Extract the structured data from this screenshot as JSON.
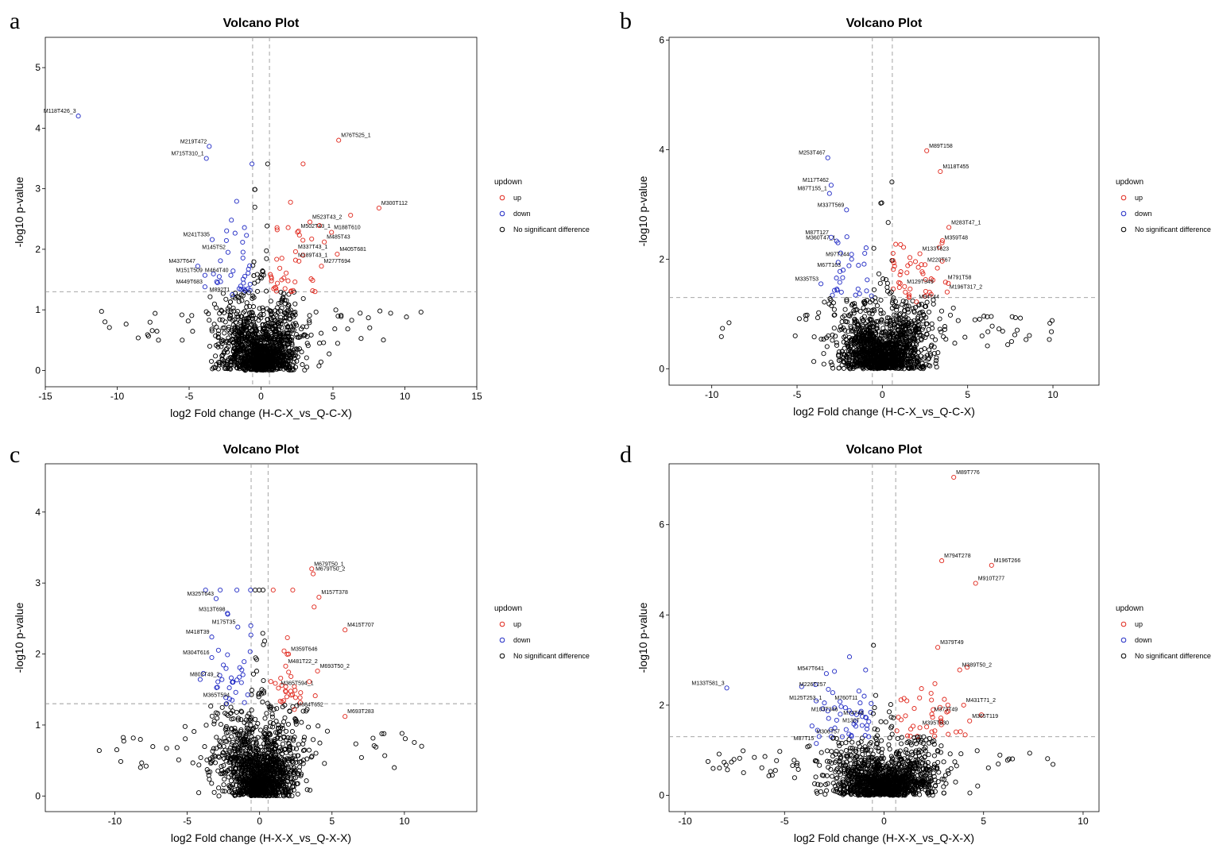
{
  "colors": {
    "up": "#e0261b",
    "down": "#1f29c4",
    "ns": "#000000",
    "guide": "#9a9a9a"
  },
  "chart_data": [
    {
      "panel": "a",
      "type": "scatter",
      "title": "Volcano Plot",
      "xlabel": "log2 Fold change (H-C-X_vs_Q-C-X)",
      "ylabel": "-log10 p-value",
      "xlim": [
        -15,
        15
      ],
      "ylim": [
        -0.27,
        5.5
      ],
      "xticks": [
        -15,
        -10,
        -5,
        0,
        5,
        10,
        15
      ],
      "yticks": [
        0,
        1,
        2,
        3,
        4,
        5
      ],
      "fc_threshold": 0.585,
      "p_threshold": 1.3,
      "grid": false,
      "legend_position": "right",
      "legend": {
        "title": "updown",
        "items": [
          "up",
          "down",
          "No significant difference"
        ]
      },
      "labeled_points": [
        {
          "label": "M118T426_3",
          "x": -12.7,
          "y": 4.2,
          "group": "down"
        },
        {
          "label": "M219T472",
          "x": -3.6,
          "y": 3.7,
          "group": "down"
        },
        {
          "label": "M715T310_1",
          "x": -3.8,
          "y": 3.5,
          "group": "down"
        },
        {
          "label": "M241T335",
          "x": -3.4,
          "y": 2.16,
          "group": "down"
        },
        {
          "label": "M145T52",
          "x": -2.3,
          "y": 1.95,
          "group": "down"
        },
        {
          "label": "M437T647",
          "x": -4.4,
          "y": 1.72,
          "group": "down"
        },
        {
          "label": "M151T509",
          "x": -3.9,
          "y": 1.57,
          "group": "down"
        },
        {
          "label": "M464T40",
          "x": -2.1,
          "y": 1.57,
          "group": "down"
        },
        {
          "label": "M449T683",
          "x": -3.9,
          "y": 1.38,
          "group": "down"
        },
        {
          "label": "M892T1",
          "x": -2.0,
          "y": 1.25,
          "group": "down"
        },
        {
          "label": "M76T525_1",
          "x": 5.4,
          "y": 3.8,
          "group": "up"
        },
        {
          "label": "M300T112",
          "x": 8.2,
          "y": 2.68,
          "group": "up"
        },
        {
          "label": "M523T43_2",
          "x": 3.4,
          "y": 2.45,
          "group": "up"
        },
        {
          "label": "M502T43_1",
          "x": 2.6,
          "y": 2.3,
          "group": "up"
        },
        {
          "label": "M188T610",
          "x": 4.9,
          "y": 2.28,
          "group": "up"
        },
        {
          "label": "M485T43",
          "x": 4.4,
          "y": 2.12,
          "group": "up"
        },
        {
          "label": "M337T43_1",
          "x": 2.4,
          "y": 1.96,
          "group": "up"
        },
        {
          "label": "M405T681",
          "x": 5.3,
          "y": 1.92,
          "group": "up"
        },
        {
          "label": "M189T43_1",
          "x": 2.4,
          "y": 1.82,
          "group": "up"
        },
        {
          "label": "M277T694",
          "x": 4.2,
          "y": 1.72,
          "group": "up"
        }
      ]
    },
    {
      "panel": "b",
      "type": "scatter",
      "title": "Volcano Plot",
      "xlabel": "log2 Fold change (H-C-X_vs_Q-C-X)",
      "ylabel": "-log10 p-value",
      "xlim": [
        -12.5,
        12.7
      ],
      "ylim": [
        -0.3,
        6.05
      ],
      "xticks": [
        -10,
        -5,
        0,
        5,
        10
      ],
      "yticks": [
        0,
        2,
        4,
        6
      ],
      "fc_threshold": 0.585,
      "p_threshold": 1.3,
      "grid": false,
      "legend_position": "right",
      "legend": {
        "title": "updown",
        "items": [
          "up",
          "down",
          "No significant difference"
        ]
      },
      "labeled_points": [
        {
          "label": "M253T467",
          "x": -3.2,
          "y": 3.85,
          "group": "down"
        },
        {
          "label": "M117T462",
          "x": -3.0,
          "y": 3.35,
          "group": "down"
        },
        {
          "label": "M87T155_1",
          "x": -3.1,
          "y": 3.2,
          "group": "down"
        },
        {
          "label": "M337T569",
          "x": -2.1,
          "y": 2.9,
          "group": "down"
        },
        {
          "label": "M87T127",
          "x": -3.0,
          "y": 2.4,
          "group": "down"
        },
        {
          "label": "M360T47_1",
          "x": -2.6,
          "y": 2.3,
          "group": "down"
        },
        {
          "label": "M97T144",
          "x": -1.8,
          "y": 2.0,
          "group": "down"
        },
        {
          "label": "M67T163",
          "x": -2.3,
          "y": 1.8,
          "group": "down"
        },
        {
          "label": "M335T53",
          "x": -3.6,
          "y": 1.55,
          "group": "down"
        },
        {
          "label": "M89T158",
          "x": 2.6,
          "y": 3.98,
          "group": "up"
        },
        {
          "label": "M118T455",
          "x": 3.4,
          "y": 3.6,
          "group": "up"
        },
        {
          "label": "M283T47_1",
          "x": 3.9,
          "y": 2.58,
          "group": "up"
        },
        {
          "label": "M359T48",
          "x": 3.5,
          "y": 2.3,
          "group": "up"
        },
        {
          "label": "M133T623",
          "x": 2.2,
          "y": 2.1,
          "group": "up"
        },
        {
          "label": "M220T67",
          "x": 2.5,
          "y": 1.9,
          "group": "up"
        },
        {
          "label": "M791T58",
          "x": 3.7,
          "y": 1.58,
          "group": "up"
        },
        {
          "label": "M129T349",
          "x": 1.3,
          "y": 1.5,
          "group": "up"
        },
        {
          "label": "M196T317_2",
          "x": 3.8,
          "y": 1.4,
          "group": "up"
        },
        {
          "label": "M94T44",
          "x": 2.0,
          "y": 1.22,
          "group": "up"
        }
      ]
    },
    {
      "panel": "c",
      "type": "scatter",
      "title": "Volcano Plot",
      "xlabel": "log2 Fold change (H-X-X_vs_Q-X-X)",
      "ylabel": "-log10 p-value",
      "xlim": [
        -14.8,
        15
      ],
      "ylim": [
        -0.22,
        4.68
      ],
      "xticks": [
        -10,
        -5,
        0,
        5,
        10
      ],
      "yticks": [
        0,
        1,
        2,
        3,
        4
      ],
      "fc_threshold": 0.585,
      "p_threshold": 1.3,
      "grid": false,
      "legend_position": "right",
      "legend": {
        "title": "updown",
        "items": [
          "up",
          "down",
          "No significant difference"
        ]
      },
      "labeled_points": [
        {
          "label": "M325T643",
          "x": -3.0,
          "y": 2.78,
          "group": "down"
        },
        {
          "label": "M313T698",
          "x": -2.2,
          "y": 2.56,
          "group": "down"
        },
        {
          "label": "M175T35",
          "x": -1.5,
          "y": 2.38,
          "group": "down"
        },
        {
          "label": "M418T39",
          "x": -3.3,
          "y": 2.24,
          "group": "down"
        },
        {
          "label": "M304T616",
          "x": -3.3,
          "y": 1.95,
          "group": "down"
        },
        {
          "label": "M802T49_2",
          "x": -2.6,
          "y": 1.64,
          "group": "down"
        },
        {
          "label": "M365T594",
          "x": -1.9,
          "y": 1.35,
          "group": "down"
        },
        {
          "label": "M679T50_1",
          "x": 3.6,
          "y": 3.2,
          "group": "up"
        },
        {
          "label": "M679T50_2",
          "x": 3.7,
          "y": 3.13,
          "group": "up"
        },
        {
          "label": "M157T378",
          "x": 4.1,
          "y": 2.8,
          "group": "up"
        },
        {
          "label": "M415T707",
          "x": 5.9,
          "y": 2.34,
          "group": "up"
        },
        {
          "label": "M359T646",
          "x": 2.0,
          "y": 2.0,
          "group": "up"
        },
        {
          "label": "M481T22_2",
          "x": 1.8,
          "y": 1.83,
          "group": "up"
        },
        {
          "label": "M693T50_2",
          "x": 4.0,
          "y": 1.76,
          "group": "up"
        },
        {
          "label": "M365T594_1",
          "x": 1.3,
          "y": 1.52,
          "group": "up"
        },
        {
          "label": "M684T652",
          "x": 2.4,
          "y": 1.22,
          "group": "up"
        },
        {
          "label": "M693T283",
          "x": 5.9,
          "y": 1.12,
          "group": "up"
        }
      ]
    },
    {
      "panel": "d",
      "type": "scatter",
      "title": "Volcano Plot",
      "xlabel": "log2 Fold change (H-X-X_vs_Q-X-X)",
      "ylabel": "-log10 p-value",
      "xlim": [
        -10.8,
        10.8
      ],
      "ylim": [
        -0.36,
        7.35
      ],
      "xticks": [
        -10,
        -5,
        0,
        5,
        10
      ],
      "yticks": [
        0,
        2,
        4,
        6
      ],
      "fc_threshold": 0.585,
      "p_threshold": 1.3,
      "grid": false,
      "legend_position": "right",
      "legend": {
        "title": "updown",
        "items": [
          "up",
          "down",
          "No significant difference"
        ]
      },
      "labeled_points": [
        {
          "label": "M133T581_3",
          "x": -7.9,
          "y": 2.38,
          "group": "down"
        },
        {
          "label": "M547T641",
          "x": -2.9,
          "y": 2.7,
          "group": "down"
        },
        {
          "label": "M226T257",
          "x": -2.8,
          "y": 2.35,
          "group": "down"
        },
        {
          "label": "M125T253_1",
          "x": -3.0,
          "y": 2.05,
          "group": "down"
        },
        {
          "label": "M760T11",
          "x": -1.2,
          "y": 2.05,
          "group": "down"
        },
        {
          "label": "M103T346",
          "x": -2.2,
          "y": 1.8,
          "group": "down"
        },
        {
          "label": "M74T46",
          "x": -0.9,
          "y": 1.72,
          "group": "down"
        },
        {
          "label": "M130T",
          "x": -1.1,
          "y": 1.55,
          "group": "down"
        },
        {
          "label": "M306T57",
          "x": -2.1,
          "y": 1.3,
          "group": "down"
        },
        {
          "label": "M87T15",
          "x": -3.4,
          "y": 1.15,
          "group": "down"
        },
        {
          "label": "M89T776",
          "x": 3.5,
          "y": 7.05,
          "group": "up"
        },
        {
          "label": "M794T278",
          "x": 2.9,
          "y": 5.2,
          "group": "up"
        },
        {
          "label": "M196T266",
          "x": 5.4,
          "y": 5.1,
          "group": "up"
        },
        {
          "label": "M910T277",
          "x": 4.6,
          "y": 4.7,
          "group": "up"
        },
        {
          "label": "M379T49",
          "x": 2.7,
          "y": 3.28,
          "group": "up"
        },
        {
          "label": "M389T50_2",
          "x": 3.8,
          "y": 2.78,
          "group": "up"
        },
        {
          "label": "M431T71_2",
          "x": 4.0,
          "y": 2.0,
          "group": "up"
        },
        {
          "label": "M373T49",
          "x": 2.4,
          "y": 1.8,
          "group": "up"
        },
        {
          "label": "M365T119",
          "x": 4.3,
          "y": 1.65,
          "group": "up"
        },
        {
          "label": "M395T630",
          "x": 1.8,
          "y": 1.5,
          "group": "up"
        }
      ]
    }
  ]
}
